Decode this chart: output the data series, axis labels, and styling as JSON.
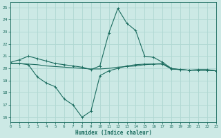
{
  "xlabel": "Humidex (Indice chaleur)",
  "ylabel": "",
  "bg_color": "#cce9e5",
  "grid_color": "#b0d8d2",
  "line_color": "#1a6b5e",
  "xlim": [
    0,
    23
  ],
  "ylim": [
    15.6,
    25.4
  ],
  "yticks": [
    16,
    17,
    18,
    19,
    20,
    21,
    22,
    23,
    24,
    25
  ],
  "xticks": [
    0,
    1,
    2,
    3,
    4,
    5,
    6,
    7,
    8,
    9,
    10,
    11,
    12,
    13,
    14,
    15,
    16,
    17,
    18,
    19,
    20,
    21,
    22,
    23
  ],
  "line1_x": [
    0,
    1,
    2,
    3,
    4,
    5,
    6,
    7,
    8,
    9,
    10,
    11,
    12,
    13,
    14,
    15,
    16,
    17,
    18,
    19,
    20,
    21,
    22,
    23
  ],
  "line1_y": [
    20.5,
    20.7,
    21.0,
    20.8,
    20.6,
    20.4,
    20.3,
    20.2,
    20.1,
    19.9,
    20.2,
    22.9,
    24.9,
    23.7,
    23.1,
    21.0,
    20.9,
    20.5,
    20.0,
    19.9,
    19.85,
    19.9,
    19.9,
    19.8
  ],
  "line2_x": [
    0,
    1,
    2,
    3,
    4,
    5,
    6,
    7,
    8,
    9,
    10,
    11,
    12,
    13,
    14,
    15,
    16,
    17,
    18,
    19,
    20,
    21,
    22,
    23
  ],
  "line2_y": [
    20.4,
    20.4,
    20.35,
    20.3,
    20.2,
    20.15,
    20.1,
    20.05,
    20.0,
    19.95,
    19.95,
    20.0,
    20.1,
    20.15,
    20.2,
    20.3,
    20.35,
    20.4,
    19.95,
    19.9,
    19.85,
    19.85,
    19.85,
    19.8
  ],
  "line3_x": [
    0,
    1,
    2,
    3,
    4,
    5,
    6,
    7,
    8,
    9,
    10,
    11,
    12,
    13,
    14,
    15,
    16,
    17,
    18,
    19,
    20,
    21,
    22,
    23
  ],
  "line3_y": [
    20.4,
    20.4,
    20.3,
    19.3,
    18.8,
    18.5,
    17.5,
    17.0,
    16.0,
    16.5,
    19.4,
    19.8,
    20.0,
    20.2,
    20.3,
    20.35,
    20.35,
    20.35,
    19.95,
    19.9,
    19.85,
    19.85,
    19.85,
    19.8
  ]
}
